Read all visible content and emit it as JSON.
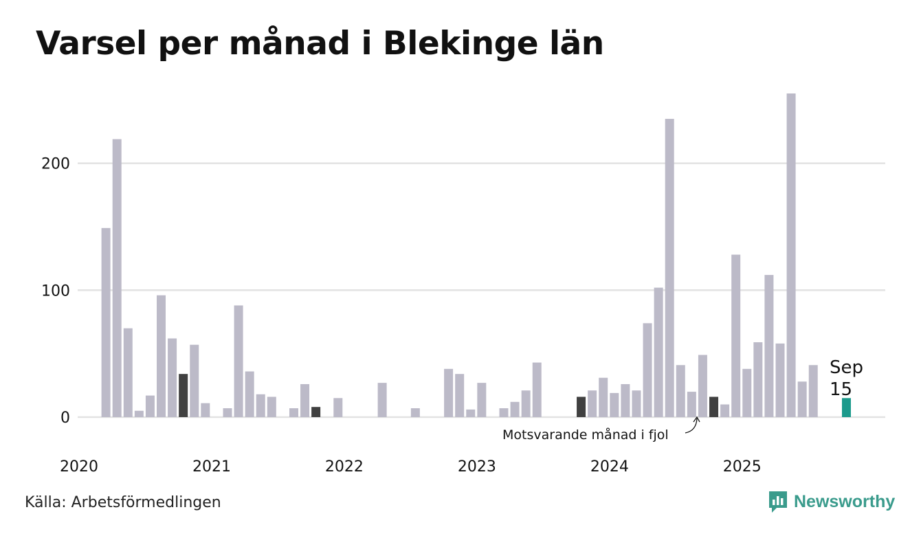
{
  "title": "Varsel per månad i Blekinge län",
  "source": "Källa: Arbetsförmedlingen",
  "brand": "Newsworthy",
  "colors": {
    "bar": "#bcbac8",
    "bar_same_month": "#404040",
    "bar_current": "#1b9a8c",
    "grid": "#e2e2e2",
    "brand": "#3a9b8c"
  },
  "chart_data": {
    "type": "bar",
    "title": "Varsel per månad i Blekinge län",
    "xlabel": "",
    "ylabel": "",
    "ylim": [
      0,
      260
    ],
    "yticks": [
      0,
      100,
      200
    ],
    "start": "2020-01",
    "x_tick_labels": [
      "2020",
      "2021",
      "2022",
      "2023",
      "2024",
      "2025"
    ],
    "values": [
      0,
      149,
      219,
      70,
      5,
      17,
      96,
      62,
      34,
      57,
      11,
      0,
      7,
      88,
      36,
      18,
      16,
      0,
      7,
      26,
      8,
      0,
      15,
      0,
      0,
      0,
      27,
      0,
      0,
      7,
      0,
      0,
      38,
      34,
      6,
      27,
      0,
      7,
      12,
      21,
      43,
      0,
      0,
      0,
      16,
      21,
      31,
      19,
      26,
      21,
      74,
      102,
      235,
      41,
      20,
      49,
      16,
      10,
      128,
      38,
      59,
      112,
      58,
      255,
      28,
      41,
      0,
      0,
      15
    ],
    "highlight_same_month_indices": [
      8,
      20,
      44,
      56
    ],
    "current_index": 68,
    "current_label_month": "Sep",
    "current_label_value": "15",
    "annotation": "Motsvarande månad i fjol"
  }
}
